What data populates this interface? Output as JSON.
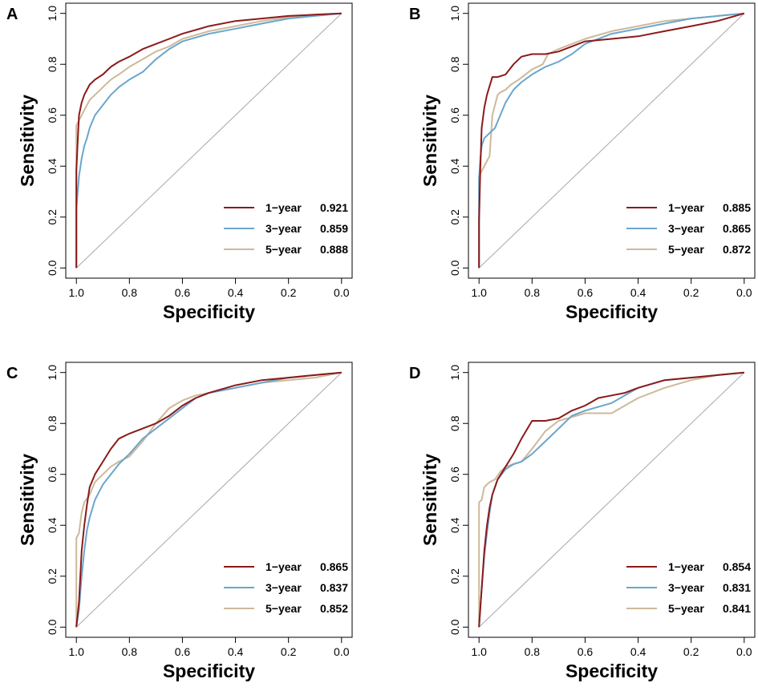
{
  "colors": {
    "one_year": "#8B1A1A",
    "three_year": "#6AA6CC",
    "five_year": "#CDB99A",
    "diagonal": "#A8A8A8"
  },
  "chart_data": [
    {
      "type": "line",
      "panel": "A",
      "xlabel": "Specificity",
      "ylabel": "Sensitivity",
      "xlim": [
        1.0,
        0.0
      ],
      "ylim": [
        0.0,
        1.0
      ],
      "xticks": [
        "1.0",
        "0.8",
        "0.6",
        "0.4",
        "0.2",
        "0.0"
      ],
      "yticks": [
        "0.0",
        "0.2",
        "0.4",
        "0.6",
        "0.8",
        "1.0"
      ],
      "legend_position": "bottom-right",
      "series": [
        {
          "name": "1−year",
          "auc": "0.921",
          "color_key": "one_year",
          "x": [
            1.0,
            1.0,
            0.995,
            0.99,
            0.98,
            0.97,
            0.96,
            0.95,
            0.93,
            0.9,
            0.87,
            0.84,
            0.8,
            0.75,
            0.7,
            0.65,
            0.6,
            0.5,
            0.4,
            0.3,
            0.2,
            0.1,
            0.0
          ],
          "y": [
            0.0,
            0.38,
            0.5,
            0.6,
            0.65,
            0.68,
            0.7,
            0.72,
            0.74,
            0.76,
            0.79,
            0.81,
            0.83,
            0.86,
            0.88,
            0.9,
            0.92,
            0.95,
            0.97,
            0.98,
            0.99,
            0.995,
            1.0
          ]
        },
        {
          "name": "3−year",
          "auc": "0.859",
          "color_key": "three_year",
          "x": [
            1.0,
            1.0,
            0.995,
            0.99,
            0.98,
            0.97,
            0.96,
            0.95,
            0.93,
            0.9,
            0.87,
            0.84,
            0.8,
            0.75,
            0.7,
            0.65,
            0.6,
            0.5,
            0.4,
            0.3,
            0.2,
            0.1,
            0.0
          ],
          "y": [
            0.0,
            0.23,
            0.3,
            0.36,
            0.43,
            0.48,
            0.51,
            0.55,
            0.6,
            0.64,
            0.68,
            0.71,
            0.74,
            0.77,
            0.82,
            0.86,
            0.89,
            0.92,
            0.94,
            0.96,
            0.98,
            0.99,
            1.0
          ]
        },
        {
          "name": "5−year",
          "auc": "0.888",
          "color_key": "five_year",
          "x": [
            1.0,
            1.0,
            0.995,
            0.99,
            0.98,
            0.97,
            0.96,
            0.95,
            0.93,
            0.9,
            0.87,
            0.84,
            0.8,
            0.75,
            0.7,
            0.65,
            0.6,
            0.5,
            0.4,
            0.3,
            0.2,
            0.1,
            0.0
          ],
          "y": [
            0.0,
            0.56,
            0.57,
            0.58,
            0.6,
            0.62,
            0.64,
            0.66,
            0.68,
            0.71,
            0.74,
            0.76,
            0.79,
            0.82,
            0.85,
            0.87,
            0.9,
            0.93,
            0.95,
            0.97,
            0.985,
            0.995,
            1.0
          ]
        }
      ]
    },
    {
      "type": "line",
      "panel": "B",
      "xlabel": "Specificity",
      "ylabel": "Sensitivity",
      "xlim": [
        1.0,
        0.0
      ],
      "ylim": [
        0.0,
        1.0
      ],
      "xticks": [
        "1.0",
        "0.8",
        "0.6",
        "0.4",
        "0.2",
        "0.0"
      ],
      "yticks": [
        "0.0",
        "0.2",
        "0.4",
        "0.6",
        "0.8",
        "1.0"
      ],
      "legend_position": "bottom-right",
      "series": [
        {
          "name": "1−year",
          "auc": "0.885",
          "color_key": "one_year",
          "x": [
            1.0,
            1.0,
            0.995,
            0.99,
            0.98,
            0.97,
            0.95,
            0.93,
            0.9,
            0.87,
            0.84,
            0.8,
            0.75,
            0.7,
            0.6,
            0.5,
            0.4,
            0.3,
            0.2,
            0.1,
            0.0
          ],
          "y": [
            0.0,
            0.18,
            0.4,
            0.55,
            0.63,
            0.68,
            0.75,
            0.75,
            0.76,
            0.8,
            0.83,
            0.84,
            0.84,
            0.85,
            0.89,
            0.9,
            0.91,
            0.93,
            0.95,
            0.97,
            1.0
          ]
        },
        {
          "name": "3−year",
          "auc": "0.865",
          "color_key": "three_year",
          "x": [
            1.0,
            1.0,
            0.995,
            0.99,
            0.98,
            0.96,
            0.94,
            0.92,
            0.9,
            0.87,
            0.84,
            0.8,
            0.75,
            0.7,
            0.65,
            0.6,
            0.5,
            0.4,
            0.3,
            0.2,
            0.1,
            0.0
          ],
          "y": [
            0.0,
            0.35,
            0.43,
            0.48,
            0.51,
            0.53,
            0.55,
            0.6,
            0.65,
            0.7,
            0.73,
            0.76,
            0.79,
            0.81,
            0.84,
            0.88,
            0.92,
            0.94,
            0.96,
            0.98,
            0.99,
            1.0
          ]
        },
        {
          "name": "5−year",
          "auc": "0.872",
          "color_key": "five_year",
          "x": [
            1.0,
            1.0,
            0.99,
            0.96,
            0.95,
            0.93,
            0.92,
            0.9,
            0.88,
            0.85,
            0.8,
            0.76,
            0.74,
            0.7,
            0.65,
            0.6,
            0.5,
            0.4,
            0.3,
            0.2,
            0.1,
            0.0
          ],
          "y": [
            0.0,
            0.36,
            0.38,
            0.44,
            0.6,
            0.68,
            0.69,
            0.7,
            0.72,
            0.74,
            0.78,
            0.8,
            0.84,
            0.86,
            0.88,
            0.9,
            0.93,
            0.95,
            0.97,
            0.98,
            0.99,
            1.0
          ]
        }
      ]
    },
    {
      "type": "line",
      "panel": "C",
      "xlabel": "Specificity",
      "ylabel": "Sensitivity",
      "xlim": [
        1.0,
        0.0
      ],
      "ylim": [
        0.0,
        1.0
      ],
      "xticks": [
        "1.0",
        "0.8",
        "0.6",
        "0.4",
        "0.2",
        "0.0"
      ],
      "yticks": [
        "0.0",
        "0.2",
        "0.4",
        "0.6",
        "0.8",
        "1.0"
      ],
      "legend_position": "bottom-right",
      "series": [
        {
          "name": "1−year",
          "auc": "0.865",
          "color_key": "one_year",
          "x": [
            1.0,
            0.99,
            0.98,
            0.97,
            0.96,
            0.95,
            0.93,
            0.9,
            0.87,
            0.84,
            0.8,
            0.75,
            0.7,
            0.65,
            0.6,
            0.55,
            0.5,
            0.4,
            0.3,
            0.2,
            0.1,
            0.0
          ],
          "y": [
            0.0,
            0.1,
            0.3,
            0.4,
            0.48,
            0.55,
            0.6,
            0.65,
            0.7,
            0.74,
            0.76,
            0.78,
            0.8,
            0.83,
            0.87,
            0.9,
            0.92,
            0.95,
            0.97,
            0.98,
            0.99,
            1.0
          ]
        },
        {
          "name": "3−year",
          "auc": "0.837",
          "color_key": "three_year",
          "x": [
            1.0,
            0.99,
            0.98,
            0.97,
            0.96,
            0.95,
            0.93,
            0.9,
            0.87,
            0.84,
            0.8,
            0.75,
            0.7,
            0.65,
            0.6,
            0.55,
            0.5,
            0.4,
            0.3,
            0.2,
            0.1,
            0.0
          ],
          "y": [
            0.0,
            0.07,
            0.2,
            0.3,
            0.38,
            0.43,
            0.5,
            0.56,
            0.6,
            0.64,
            0.68,
            0.74,
            0.78,
            0.82,
            0.86,
            0.9,
            0.92,
            0.94,
            0.96,
            0.98,
            0.99,
            1.0
          ]
        },
        {
          "name": "5−year",
          "auc": "0.852",
          "color_key": "five_year",
          "x": [
            1.0,
            1.0,
            0.99,
            0.98,
            0.97,
            0.95,
            0.93,
            0.9,
            0.87,
            0.84,
            0.8,
            0.75,
            0.7,
            0.65,
            0.6,
            0.55,
            0.5,
            0.4,
            0.3,
            0.2,
            0.1,
            0.0
          ],
          "y": [
            0.0,
            0.35,
            0.37,
            0.45,
            0.49,
            0.52,
            0.57,
            0.6,
            0.63,
            0.65,
            0.67,
            0.73,
            0.8,
            0.86,
            0.89,
            0.91,
            0.92,
            0.94,
            0.96,
            0.97,
            0.98,
            1.0
          ]
        }
      ]
    },
    {
      "type": "line",
      "panel": "D",
      "xlabel": "Specificity",
      "ylabel": "Sensitivity",
      "xlim": [
        1.0,
        0.0
      ],
      "ylim": [
        0.0,
        1.0
      ],
      "xticks": [
        "1.0",
        "0.8",
        "0.6",
        "0.4",
        "0.2",
        "0.0"
      ],
      "yticks": [
        "0.0",
        "0.2",
        "0.4",
        "0.6",
        "0.8",
        "1.0"
      ],
      "legend_position": "bottom-right",
      "series": [
        {
          "name": "1−year",
          "auc": "0.854",
          "color_key": "one_year",
          "x": [
            1.0,
            0.99,
            0.98,
            0.97,
            0.96,
            0.95,
            0.93,
            0.9,
            0.87,
            0.84,
            0.8,
            0.75,
            0.7,
            0.65,
            0.6,
            0.55,
            0.5,
            0.45,
            0.4,
            0.3,
            0.2,
            0.1,
            0.0
          ],
          "y": [
            0.0,
            0.15,
            0.3,
            0.4,
            0.47,
            0.52,
            0.58,
            0.63,
            0.68,
            0.74,
            0.81,
            0.81,
            0.82,
            0.85,
            0.87,
            0.9,
            0.91,
            0.92,
            0.94,
            0.97,
            0.98,
            0.99,
            1.0
          ]
        },
        {
          "name": "3−year",
          "auc": "0.831",
          "color_key": "three_year",
          "x": [
            1.0,
            0.99,
            0.98,
            0.97,
            0.96,
            0.95,
            0.93,
            0.9,
            0.87,
            0.84,
            0.8,
            0.75,
            0.7,
            0.65,
            0.6,
            0.5,
            0.4,
            0.3,
            0.2,
            0.1,
            0.0
          ],
          "y": [
            0.0,
            0.15,
            0.28,
            0.37,
            0.45,
            0.52,
            0.58,
            0.62,
            0.64,
            0.65,
            0.68,
            0.73,
            0.78,
            0.83,
            0.85,
            0.88,
            0.94,
            0.97,
            0.98,
            0.99,
            1.0
          ]
        },
        {
          "name": "5−year",
          "auc": "0.841",
          "color_key": "five_year",
          "x": [
            1.0,
            1.0,
            0.99,
            0.98,
            0.96,
            0.94,
            0.92,
            0.9,
            0.87,
            0.84,
            0.8,
            0.75,
            0.7,
            0.6,
            0.5,
            0.45,
            0.4,
            0.3,
            0.2,
            0.1,
            0.0
          ],
          "y": [
            0.0,
            0.49,
            0.5,
            0.55,
            0.57,
            0.58,
            0.61,
            0.63,
            0.64,
            0.65,
            0.7,
            0.77,
            0.81,
            0.84,
            0.84,
            0.87,
            0.9,
            0.94,
            0.97,
            0.99,
            1.0
          ]
        }
      ]
    }
  ]
}
